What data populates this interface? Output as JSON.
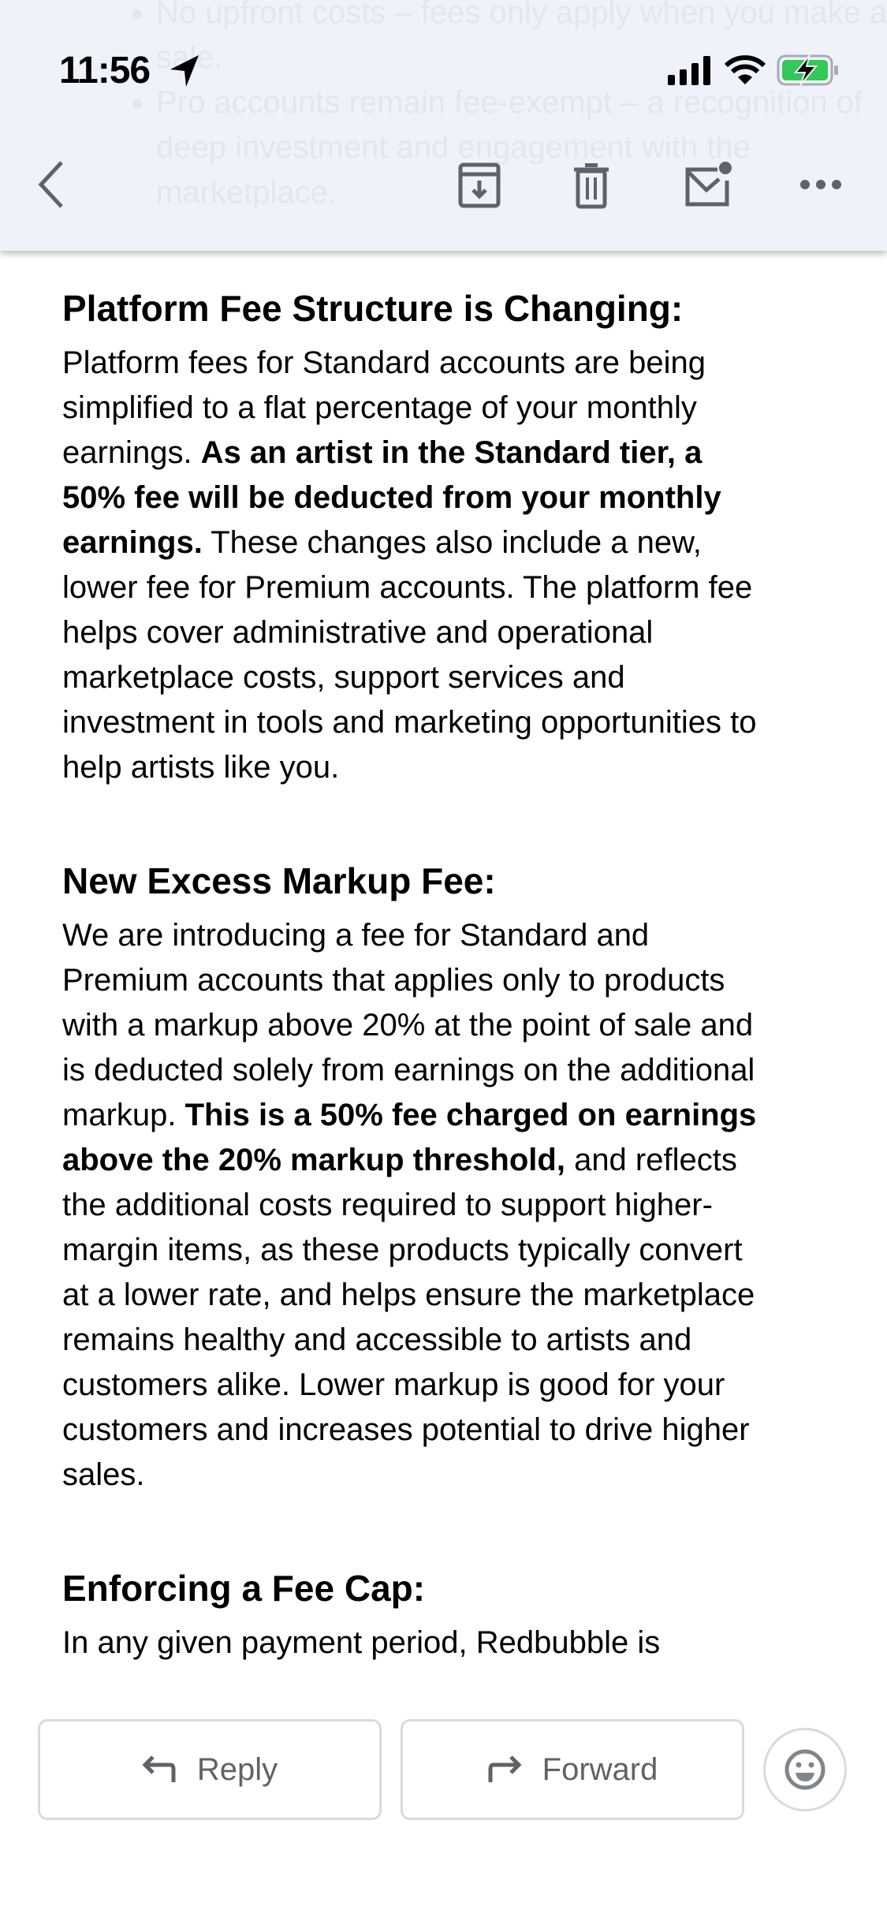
{
  "status_bar": {
    "time": "11:56",
    "battery_color": "#34c759"
  },
  "background_text": {
    "bullets": [
      "No upfront costs – fees only apply when you make a sale.",
      "Pro accounts remain fee-exempt – a recognition of deep investment and engagement with the marketplace."
    ]
  },
  "toolbar": {
    "icons": [
      "back-icon",
      "archive-icon",
      "trash-icon",
      "mark-unread-icon",
      "more-icon"
    ]
  },
  "sections": [
    {
      "heading": "Platform Fee Structure is Changing:",
      "lines": [
        [
          {
            "t": "Platform fees for Standard accounts are being"
          }
        ],
        [
          {
            "t": "simplified to a flat percentage of your monthly"
          }
        ],
        [
          {
            "t": "earnings. "
          },
          {
            "t": "As an artist in the Standard tier, a",
            "b": true
          }
        ],
        [
          {
            "t": "50% fee will be deducted from your monthly",
            "b": true
          }
        ],
        [
          {
            "t": "earnings.",
            "b": true
          },
          {
            "t": " These changes also include a new,"
          }
        ],
        [
          {
            "t": "lower fee for Premium accounts. The platform fee"
          }
        ],
        [
          {
            "t": "helps cover administrative and operational"
          }
        ],
        [
          {
            "t": "marketplace costs, support services and"
          }
        ],
        [
          {
            "t": "investment in tools and marketing opportunities to"
          }
        ],
        [
          {
            "t": "help artists like you."
          }
        ]
      ]
    },
    {
      "heading": "New Excess Markup Fee:",
      "lines": [
        [
          {
            "t": "We are introducing a fee for Standard and"
          }
        ],
        [
          {
            "t": "Premium accounts that applies only to products"
          }
        ],
        [
          {
            "t": "with a markup above 20% at the point of sale and"
          }
        ],
        [
          {
            "t": "is deducted solely from earnings on the additional"
          }
        ],
        [
          {
            "t": "markup. "
          },
          {
            "t": "This is a 50% fee charged on earnings",
            "b": true
          }
        ],
        [
          {
            "t": "above the 20% markup threshold,",
            "b": true
          },
          {
            "t": " and reflects"
          }
        ],
        [
          {
            "t": "the additional costs required to support higher-"
          }
        ],
        [
          {
            "t": "margin items, as these products typically convert"
          }
        ],
        [
          {
            "t": "at a lower rate, and helps ensure the marketplace"
          }
        ],
        [
          {
            "t": "remains healthy and accessible to artists and"
          }
        ],
        [
          {
            "t": "customers alike. Lower markup is good for your"
          }
        ],
        [
          {
            "t": "customers and increases potential to drive higher"
          }
        ],
        [
          {
            "t": "sales."
          }
        ]
      ]
    },
    {
      "heading": "Enforcing a Fee Cap:",
      "lines": [
        [
          {
            "t": "In any given payment period, Redbubble is"
          }
        ]
      ]
    }
  ],
  "actions": {
    "reply": "Reply",
    "forward": "Forward",
    "reaction_icon": "emoji-icon"
  }
}
